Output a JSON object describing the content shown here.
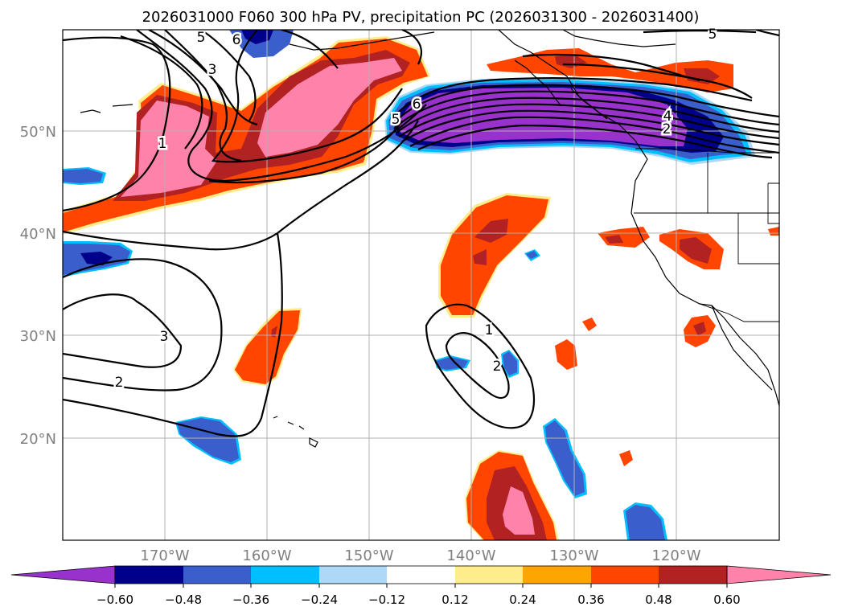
{
  "title": "2026031000 F060 300 hPa PV, precipitation PC (2026031300 - 2026031400)",
  "map": {
    "lon_range": [
      -180,
      -110
    ],
    "lat_range": [
      10,
      60
    ],
    "lat_labels": [
      "20°N",
      "30°N",
      "40°N",
      "50°N"
    ],
    "lon_labels": [
      "170°W",
      "160°W",
      "150°W",
      "140°W",
      "130°W",
      "120°W"
    ],
    "pv_contour_labels": [
      "5",
      "6",
      "3",
      "1",
      "6",
      "5",
      "4",
      "2",
      "5",
      "3",
      "2",
      "1",
      "2"
    ]
  },
  "colorbar": {
    "ticks": [
      "−0.60",
      "−0.48",
      "−0.36",
      "−0.24",
      "−0.12",
      "0.12",
      "0.24",
      "0.36",
      "0.48",
      "0.60"
    ],
    "colors": [
      "#9932cc",
      "#00008b",
      "#3a5fcd",
      "#00bfff",
      "#add8f7",
      "#ffffff",
      "#ffec8b",
      "#ffa500",
      "#ff4500",
      "#b22222",
      "#ff82ab"
    ]
  },
  "colors": {
    "pink": "#ff82ab",
    "darkred": "#b22222",
    "orangered": "#ff4500",
    "orange": "#ffa500",
    "yellow": "#ffec8b",
    "lightblue": "#add8f7",
    "skyblue": "#00bfff",
    "royalblue": "#3a5fcd",
    "navy": "#00008b",
    "purple": "#9932cc"
  }
}
